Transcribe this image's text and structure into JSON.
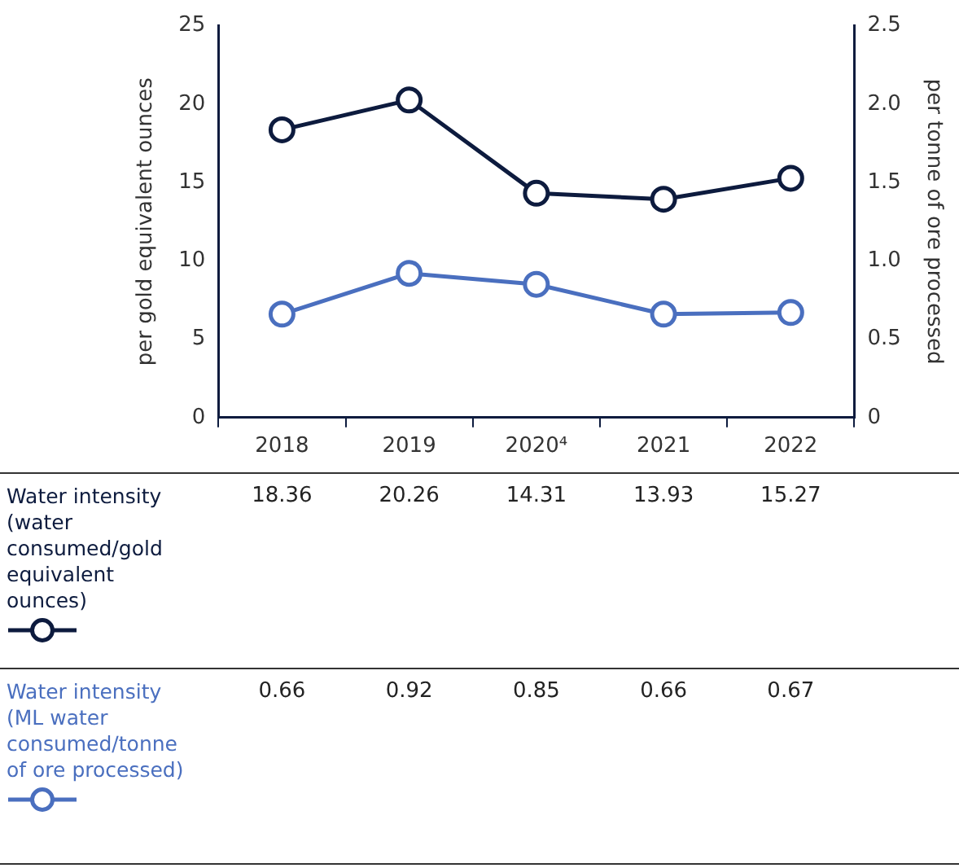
{
  "chart_data": {
    "type": "line",
    "categories": [
      "2018",
      "2019",
      "2020⁴",
      "2021",
      "2022"
    ],
    "ylabel": "per gold equivalent ounces",
    "y2label": "per tonne of ore processed",
    "ylim": [
      0,
      25
    ],
    "yticks": [
      0,
      5,
      10,
      15,
      20,
      25
    ],
    "y2lim": [
      0,
      2.5
    ],
    "y2ticks": [
      0,
      {
        "value": 0.5,
        "label": "0.5"
      },
      {
        "value": 1,
        "label": "1.0"
      },
      {
        "value": 1.5,
        "label": "1.5"
      },
      {
        "value": 2,
        "label": "2.0"
      },
      {
        "value": 2.5,
        "label": "2.5"
      }
    ],
    "series": [
      {
        "name": "Water intensity (water consumed/gold equivalent ounces)",
        "color": "#0d1b3e",
        "values": [
          18.36,
          20.26,
          14.31,
          13.93,
          15.27
        ]
      },
      {
        "name": "Water intensity (ML water consumed/tonne of ore processed)",
        "color": "#4a6fbf",
        "values": [
          0.66,
          0.92,
          0.85,
          0.66,
          0.67
        ],
        "axis": "y2"
      }
    ],
    "data_labels": true,
    "legend": "bottom",
    "grid": false,
    "marker": "circle",
    "line_style": "solid"
  }
}
